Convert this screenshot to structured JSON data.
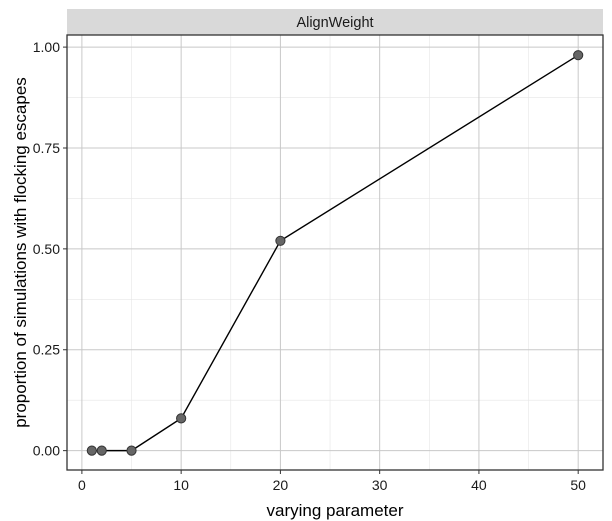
{
  "chart_data": {
    "type": "line",
    "facet_label": "AlignWeight",
    "xlabel": "varying parameter",
    "ylabel": "proportion of simulations with flocking escapes",
    "xlim": [
      -1.5,
      52.5
    ],
    "ylim": [
      -0.048,
      1.03
    ],
    "x_ticks": [
      0,
      10,
      20,
      30,
      40,
      50
    ],
    "x_tick_labels": [
      "0",
      "10",
      "20",
      "30",
      "40",
      "50"
    ],
    "y_ticks": [
      0,
      0.25,
      0.5,
      0.75,
      1
    ],
    "y_tick_labels": [
      "0.00",
      "0.25",
      "0.50",
      "0.75",
      "1.00"
    ],
    "x_minor_ticks": [
      5,
      15,
      25,
      35,
      45
    ],
    "y_minor_ticks": [
      0.125,
      0.375,
      0.625,
      0.875
    ],
    "grid": true,
    "series": [
      {
        "x": [
          1,
          2,
          5,
          10,
          20,
          50
        ],
        "y": [
          0,
          0,
          0,
          0.08,
          0.52,
          0.98
        ]
      }
    ],
    "colors": {
      "line": "#000000",
      "point_fill": "#666666",
      "point_stroke": "#333333",
      "strip_bg": "#d9d9d9",
      "grid_major": "#c8c8c8",
      "grid_minor": "#e6e6e6",
      "panel_border": "#333333"
    }
  }
}
